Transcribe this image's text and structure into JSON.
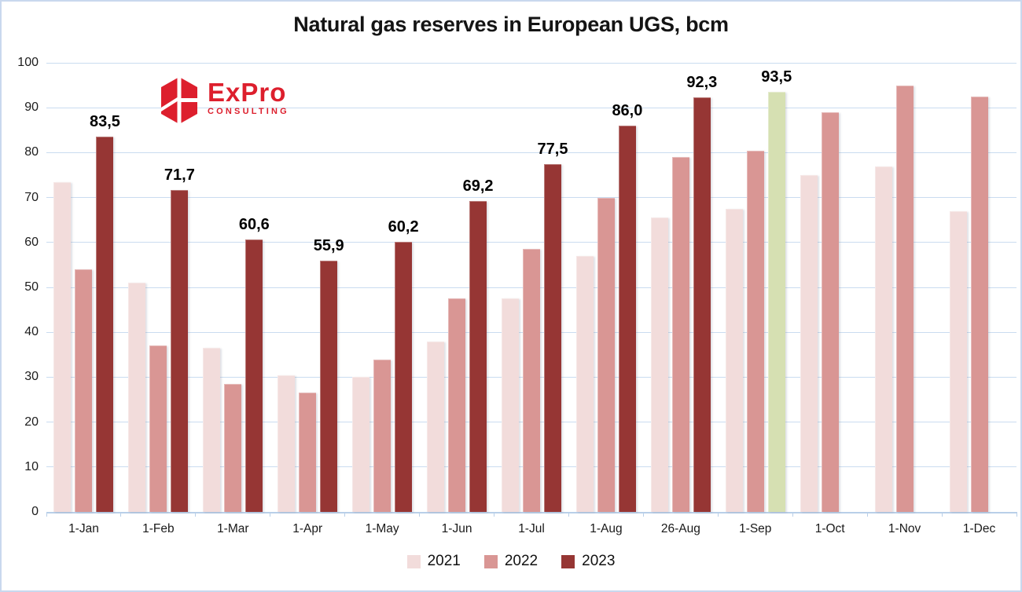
{
  "title": "Natural gas reserves in European UGS, bcm",
  "logo": {
    "brand": "ExPro",
    "subtitle": "CONSULTING",
    "color": "#dd1f2d"
  },
  "colors": {
    "background": "#ffffff",
    "border": "#c9d8ee",
    "gridline": "#cadcf0",
    "axis_line": "#b9cfe8",
    "data_label_text": "#000000",
    "series_2021": "#f2dcdb",
    "series_2022": "#d99694",
    "series_2023": "#963634",
    "highlight_green": "#d6e0b2"
  },
  "chart_data": {
    "type": "bar",
    "title": "Natural gas reserves in European UGS, bcm",
    "xlabel": "",
    "ylabel": "",
    "ylim": [
      0,
      100
    ],
    "yticks": [
      0,
      10,
      20,
      30,
      40,
      50,
      60,
      70,
      80,
      90,
      100
    ],
    "grid": true,
    "legend_position": "bottom",
    "decimal_separator": ",",
    "categories": [
      "1-Jan",
      "1-Feb",
      "1-Mar",
      "1-Apr",
      "1-May",
      "1-Jun",
      "1-Jul",
      "1-Aug",
      "26-Aug",
      "1-Sep",
      "1-Oct",
      "1-Nov",
      "1-Dec"
    ],
    "series": [
      {
        "name": "2021",
        "color": "#f2dcdb",
        "values": [
          73.5,
          51,
          36.5,
          30.5,
          30,
          38,
          47.5,
          57,
          65.5,
          67.5,
          75,
          77,
          67
        ]
      },
      {
        "name": "2022",
        "color": "#d99694",
        "values": [
          54,
          37,
          28.5,
          26.5,
          34,
          47.5,
          58.5,
          70,
          79,
          80.5,
          89,
          95,
          92.5
        ]
      },
      {
        "name": "2023",
        "color": "#963634",
        "values": [
          83.5,
          71.7,
          60.6,
          55.9,
          60.2,
          69.2,
          77.5,
          86,
          92.3,
          93.5,
          null,
          null,
          null
        ],
        "data_labels": [
          "83,5",
          "71,7",
          "60,6",
          "55,9",
          "60,2",
          "69,2",
          "77,5",
          "86,0",
          "92,3",
          "93,5",
          null,
          null,
          null
        ],
        "highlight": {
          "category": "1-Sep",
          "index": 9,
          "color": "#d6e0b2"
        }
      }
    ]
  }
}
